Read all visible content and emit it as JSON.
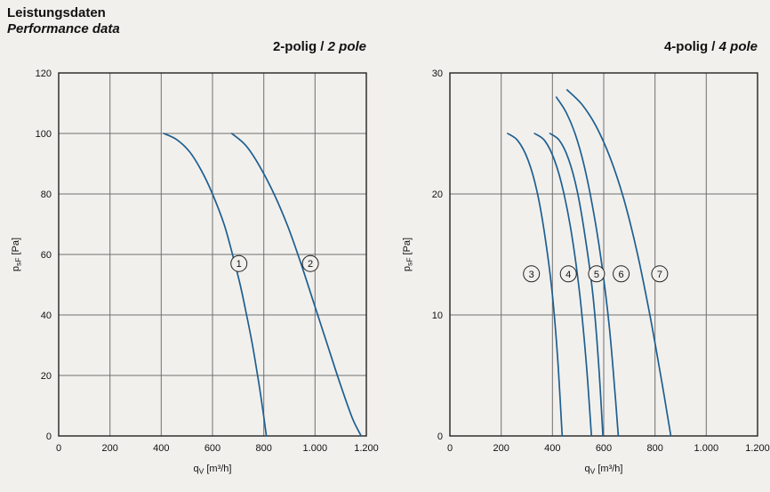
{
  "header": {
    "title": "Leistungsdaten",
    "subtitle": "Performance data"
  },
  "colors": {
    "curve": "#1e5f90",
    "grid": "#6f6f6f",
    "axis": "#222222",
    "marker_fill": "#f2f0ed",
    "text": "#111111"
  },
  "chart_data": [
    {
      "type": "line",
      "title_main": "2-polig / ",
      "title_italic": "2 pole",
      "xlabel": {
        "sym": "q",
        "sub": "V",
        "unit": " [m³/h]"
      },
      "ylabel": {
        "sym": "p",
        "sub": "sF",
        "unit": " [Pa]"
      },
      "xlim": [
        0,
        1200
      ],
      "ylim": [
        0,
        120
      ],
      "grid": true,
      "xticks": [
        {
          "v": 0,
          "t": "0"
        },
        {
          "v": 200,
          "t": "200"
        },
        {
          "v": 400,
          "t": "400"
        },
        {
          "v": 600,
          "t": "600"
        },
        {
          "v": 800,
          "t": "800"
        },
        {
          "v": 1000,
          "t": "1.000"
        },
        {
          "v": 1200,
          "t": "1.200"
        }
      ],
      "yticks": [
        {
          "v": 0,
          "t": "0"
        },
        {
          "v": 20,
          "t": "20"
        },
        {
          "v": 40,
          "t": "40"
        },
        {
          "v": 60,
          "t": "60"
        },
        {
          "v": 80,
          "t": "80"
        },
        {
          "v": 100,
          "t": "100"
        },
        {
          "v": 120,
          "t": "120"
        }
      ],
      "series": [
        {
          "label": "1",
          "marker": {
            "x": 703,
            "y": 57
          },
          "points": [
            [
              410,
              100
            ],
            [
              460,
              98
            ],
            [
              510,
              94
            ],
            [
              555,
              88
            ],
            [
              600,
              80
            ],
            [
              645,
              70
            ],
            [
              678,
              60
            ],
            [
              708,
              50
            ],
            [
              733,
              40
            ],
            [
              756,
              30
            ],
            [
              776,
              20
            ],
            [
              794,
              10
            ],
            [
              810,
              0
            ]
          ]
        },
        {
          "label": "2",
          "marker": {
            "x": 982,
            "y": 57
          },
          "points": [
            [
              675,
              100
            ],
            [
              730,
              96
            ],
            [
              785,
              89
            ],
            [
              840,
              80
            ],
            [
              895,
              69
            ],
            [
              945,
              57
            ],
            [
              995,
              44
            ],
            [
              1045,
              31
            ],
            [
              1095,
              18
            ],
            [
              1145,
              6
            ],
            [
              1180,
              0
            ]
          ]
        }
      ]
    },
    {
      "type": "line",
      "title_main": "4-polig / ",
      "title_italic": "4 pole",
      "xlabel": {
        "sym": "q",
        "sub": "V",
        "unit": " [m³/h]"
      },
      "ylabel": {
        "sym": "p",
        "sub": "sF",
        "unit": " [Pa]"
      },
      "xlim": [
        0,
        1200
      ],
      "ylim": [
        0,
        30
      ],
      "grid": true,
      "xticks": [
        {
          "v": 0,
          "t": "0"
        },
        {
          "v": 200,
          "t": "200"
        },
        {
          "v": 400,
          "t": "400"
        },
        {
          "v": 600,
          "t": "600"
        },
        {
          "v": 800,
          "t": "800"
        },
        {
          "v": 1000,
          "t": "1.000"
        },
        {
          "v": 1200,
          "t": "1.200"
        }
      ],
      "yticks": [
        {
          "v": 0,
          "t": "0"
        },
        {
          "v": 10,
          "t": "10"
        },
        {
          "v": 20,
          "t": "20"
        },
        {
          "v": 30,
          "t": "30"
        }
      ],
      "series": [
        {
          "label": "3",
          "marker": {
            "x": 318,
            "y": 13.4
          },
          "points": [
            [
              225,
              25
            ],
            [
              265,
              24.4
            ],
            [
              305,
              22.8
            ],
            [
              340,
              20.2
            ],
            [
              370,
              16.6
            ],
            [
              398,
              12
            ],
            [
              420,
              6.5
            ],
            [
              438,
              0
            ]
          ]
        },
        {
          "label": "4",
          "marker": {
            "x": 462,
            "y": 13.4
          },
          "points": [
            [
              330,
              25
            ],
            [
              370,
              24.4
            ],
            [
              408,
              22.8
            ],
            [
              443,
              20.2
            ],
            [
              477,
              16.4
            ],
            [
              507,
              11.6
            ],
            [
              532,
              6
            ],
            [
              552,
              0
            ]
          ]
        },
        {
          "label": "5",
          "marker": {
            "x": 572,
            "y": 13.4
          },
          "points": [
            [
              390,
              25
            ],
            [
              428,
              24.4
            ],
            [
              464,
              22.8
            ],
            [
              497,
              20.2
            ],
            [
              528,
              16.4
            ],
            [
              558,
              11.6
            ],
            [
              580,
              6
            ],
            [
              597,
              0
            ]
          ]
        },
        {
          "label": "6",
          "marker": {
            "x": 668,
            "y": 13.4
          },
          "points": [
            [
              415,
              28
            ],
            [
              452,
              26.8
            ],
            [
              488,
              25
            ],
            [
              523,
              22.4
            ],
            [
              557,
              18.9
            ],
            [
              591,
              14.4
            ],
            [
              622,
              9
            ],
            [
              646,
              3
            ],
            [
              657,
              0
            ]
          ]
        },
        {
          "label": "7",
          "marker": {
            "x": 818,
            "y": 13.4
          },
          "points": [
            [
              457,
              28.6
            ],
            [
              515,
              27.4
            ],
            [
              570,
              25.6
            ],
            [
              625,
              23
            ],
            [
              678,
              19.6
            ],
            [
              730,
              15.2
            ],
            [
              780,
              10
            ],
            [
              827,
              4.4
            ],
            [
              862,
              0
            ]
          ]
        }
      ]
    }
  ]
}
